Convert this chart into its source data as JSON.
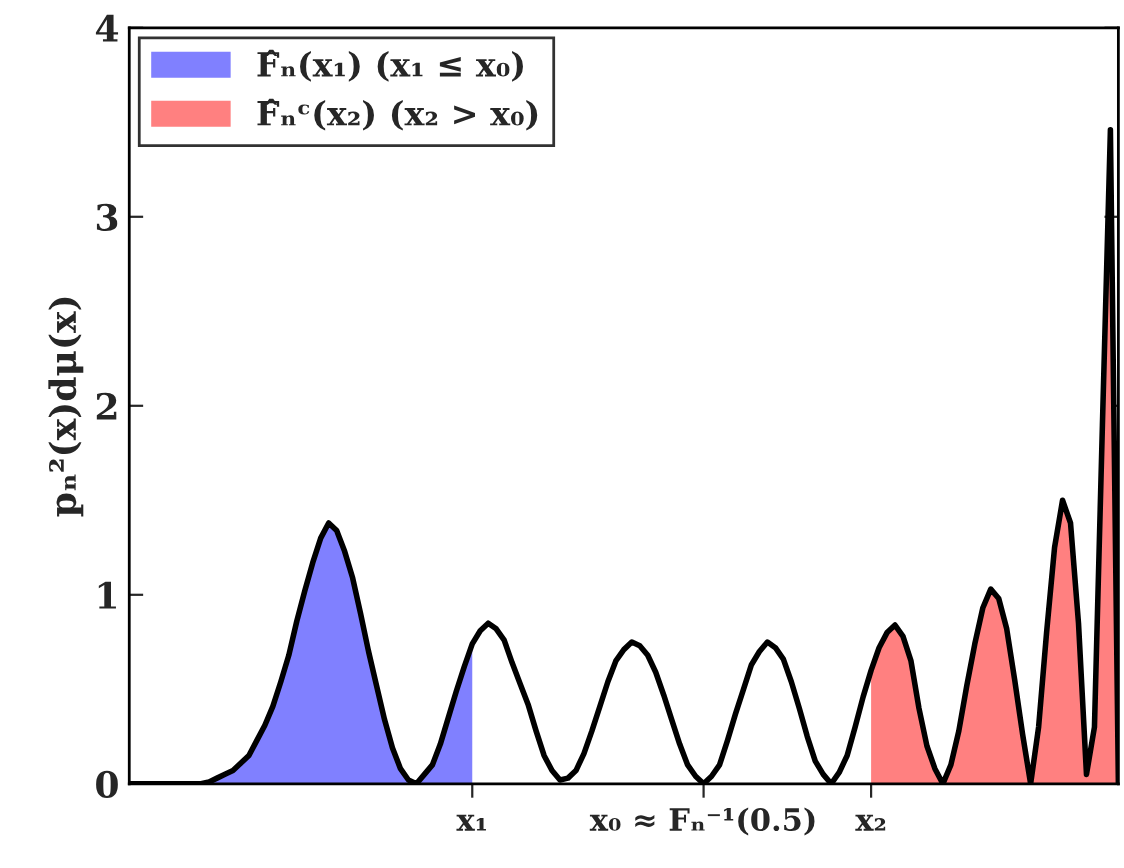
{
  "chart_data": {
    "type": "line",
    "ylabel": "pₙ²(x)dμ(x)",
    "categories": [
      null,
      null,
      null,
      null,
      null,
      null,
      null,
      null,
      null,
      null,
      null,
      null,
      null,
      null,
      null,
      null,
      null,
      null,
      null,
      null,
      null,
      null,
      null,
      null,
      null,
      null,
      null,
      null,
      null,
      null,
      null,
      null,
      null,
      null,
      null,
      null,
      null,
      null,
      null,
      null,
      null,
      null,
      null,
      "x₁",
      null,
      null,
      null,
      null,
      null,
      null,
      null,
      null,
      null,
      null,
      null,
      null,
      null,
      null,
      null,
      null,
      null,
      null,
      null,
      null,
      null,
      null,
      null,
      null,
      null,
      null,
      null,
      null,
      "x₀ ≈ Fₙ⁻¹(0.5)",
      null,
      null,
      null,
      null,
      null,
      null,
      null,
      null,
      null,
      null,
      null,
      null,
      null,
      null,
      null,
      null,
      null,
      null,
      null,
      null,
      "x₂",
      null,
      null,
      null,
      null,
      null,
      null,
      null,
      null,
      null,
      null,
      null,
      null,
      null,
      null,
      null,
      null,
      null,
      null,
      null,
      null,
      null,
      null,
      null,
      null,
      null,
      null,
      null,
      null,
      null,
      null,
      null
    ],
    "ylim": [
      0,
      4
    ],
    "yticks": [
      0,
      1,
      2,
      3,
      4
    ],
    "grid": false,
    "legend": "top left",
    "marker": "none",
    "line_style": "solid",
    "series": [
      {
        "type": "area",
        "name": "F̂ₙ(x₁) (x₁ ≤ x₀)",
        "color": "#8080ff",
        "values": [
          null,
          null,
          null,
          null,
          null,
          null,
          null,
          0,
          0,
          0,
          0.01,
          0.03,
          0.05,
          0.07,
          0.11,
          0.15,
          0.23,
          0.31,
          0.41,
          0.54,
          0.68,
          0.86,
          1.02,
          1.17,
          1.3,
          1.38,
          1.34,
          1.23,
          1.09,
          0.9,
          0.7,
          0.52,
          0.34,
          0.19,
          0.08,
          0.02,
          0,
          0.05,
          0.1,
          0.21,
          0.35,
          0.49,
          0.62,
          0.74,
          null,
          null,
          null,
          null,
          null,
          null,
          null,
          null,
          null,
          null,
          null,
          null,
          null,
          null,
          null,
          null,
          null,
          null,
          null,
          null,
          null,
          null,
          null,
          null,
          null,
          null,
          null,
          null,
          null,
          null,
          null,
          null,
          null,
          null,
          null,
          null,
          null,
          null,
          null,
          null,
          null,
          null,
          null,
          null,
          null,
          null,
          null,
          null,
          null,
          null,
          null,
          null,
          null,
          null,
          null,
          null,
          null,
          null,
          null,
          null,
          null,
          null,
          null,
          null,
          null,
          null,
          null,
          null,
          null,
          null,
          null,
          null,
          null,
          null,
          null,
          null,
          null,
          null,
          null,
          null,
          null
        ]
      },
      {
        "type": "area",
        "name": "F̂ₙᶜ(x₂) (x₂ > x₀)",
        "color": "#ff8080",
        "values": [
          null,
          null,
          null,
          null,
          null,
          null,
          null,
          null,
          null,
          null,
          null,
          null,
          null,
          null,
          null,
          null,
          null,
          null,
          null,
          null,
          null,
          null,
          null,
          null,
          null,
          null,
          null,
          null,
          null,
          null,
          null,
          null,
          null,
          null,
          null,
          null,
          null,
          null,
          null,
          null,
          null,
          null,
          null,
          null,
          null,
          null,
          null,
          null,
          null,
          null,
          null,
          null,
          null,
          null,
          null,
          null,
          null,
          null,
          null,
          null,
          null,
          null,
          null,
          null,
          null,
          null,
          null,
          null,
          null,
          null,
          null,
          null,
          null,
          null,
          null,
          null,
          null,
          null,
          null,
          null,
          null,
          null,
          null,
          null,
          null,
          null,
          null,
          null,
          null,
          null,
          null,
          null,
          null,
          0.6,
          0.72,
          0.8,
          0.84,
          0.78,
          0.65,
          0.4,
          0.2,
          0.08,
          0,
          0.1,
          0.28,
          0.52,
          0.74,
          0.93,
          1.03,
          0.98,
          0.82,
          0.55,
          0.26,
          0,
          0.3,
          0.8,
          1.25,
          1.5,
          1.38,
          0.85,
          0.05,
          0.3,
          1.9,
          3.46,
          0
        ]
      },
      {
        "color": "#000000",
        "values": [
          0,
          0,
          0,
          0,
          0,
          0,
          0,
          0,
          0,
          0,
          0.01,
          0.03,
          0.05,
          0.07,
          0.11,
          0.15,
          0.23,
          0.31,
          0.41,
          0.54,
          0.68,
          0.86,
          1.02,
          1.17,
          1.3,
          1.38,
          1.34,
          1.23,
          1.09,
          0.9,
          0.7,
          0.52,
          0.34,
          0.19,
          0.08,
          0.02,
          0,
          0.05,
          0.1,
          0.21,
          0.35,
          0.49,
          0.62,
          0.74,
          0.81,
          0.85,
          0.82,
          0.76,
          0.64,
          0.53,
          0.42,
          0.28,
          0.15,
          0.07,
          0.02,
          0.03,
          0.07,
          0.16,
          0.28,
          0.41,
          0.54,
          0.65,
          0.71,
          0.75,
          0.73,
          0.68,
          0.59,
          0.47,
          0.34,
          0.21,
          0.1,
          0.04,
          0,
          0.04,
          0.1,
          0.23,
          0.37,
          0.5,
          0.63,
          0.7,
          0.75,
          0.72,
          0.66,
          0.54,
          0.4,
          0.25,
          0.12,
          0.05,
          0,
          0.06,
          0.15,
          0.3,
          0.46,
          0.6,
          0.72,
          0.8,
          0.84,
          0.78,
          0.65,
          0.4,
          0.2,
          0.08,
          0,
          0.1,
          0.28,
          0.52,
          0.74,
          0.93,
          1.03,
          0.98,
          0.82,
          0.55,
          0.26,
          0,
          0.3,
          0.8,
          1.25,
          1.5,
          1.38,
          0.85,
          0.05,
          0.3,
          1.9,
          3.46,
          0
        ]
      }
    ]
  }
}
